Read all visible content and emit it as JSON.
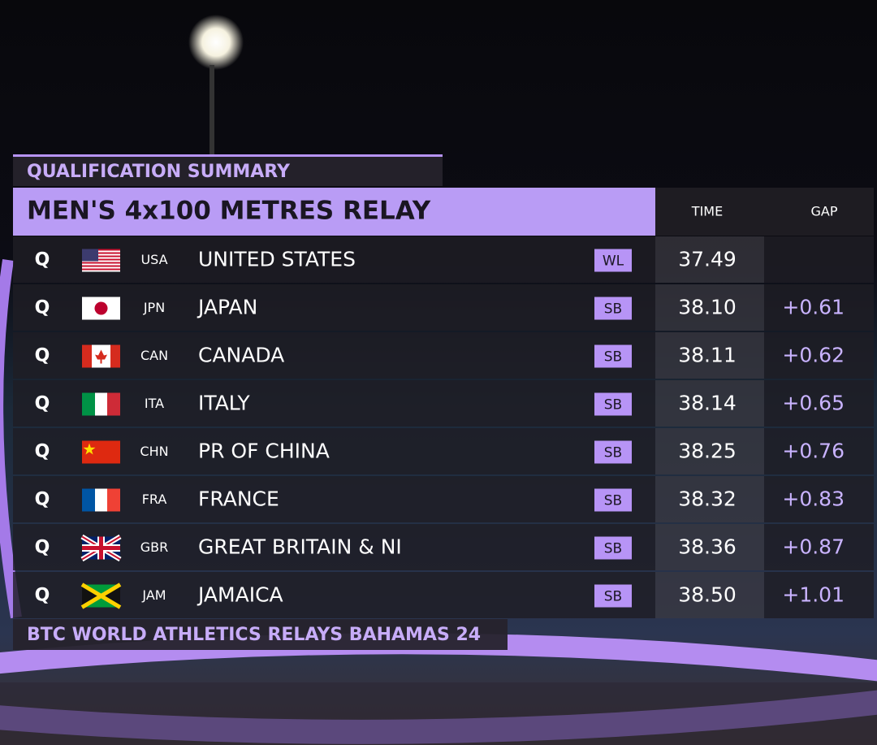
{
  "header": {
    "subtitle": "QUALIFICATION SUMMARY",
    "title": "MEN'S 4x100 METRES RELAY",
    "columns": [
      "TIME",
      "GAP"
    ]
  },
  "table": {
    "rows": [
      {
        "status": "Q",
        "code": "USA",
        "country": "UNITED STATES",
        "mark": "WL",
        "time": "37.49"
      },
      {
        "status": "Q",
        "code": "JPN",
        "country": "JAPAN",
        "mark": "SB",
        "time": "38.10",
        "gap": "+0.61"
      },
      {
        "status": "Q",
        "code": "CAN",
        "country": "CANADA",
        "mark": "SB",
        "time": "38.11",
        "gap": "+0.62"
      },
      {
        "status": "Q",
        "code": "ITA",
        "country": "ITALY",
        "mark": "SB",
        "time": "38.14",
        "gap": "+0.65"
      },
      {
        "status": "Q",
        "code": "CHN",
        "country": "PR OF CHINA",
        "mark": "SB",
        "time": "38.25",
        "gap": "+0.76"
      },
      {
        "status": "Q",
        "code": "FRA",
        "country": "FRANCE",
        "mark": "SB",
        "time": "38.32",
        "gap": "+0.83"
      },
      {
        "status": "Q",
        "code": "GBR",
        "country": "GREAT BRITAIN & NI",
        "mark": "SB",
        "time": "38.36",
        "gap": "+0.87"
      },
      {
        "status": "Q",
        "code": "JAM",
        "country": "JAMAICA",
        "mark": "SB",
        "time": "38.50",
        "gap": "+1.01"
      }
    ]
  },
  "footer": {
    "text": "BTC WORLD ATHLETICS RELAYS BAHAMAS 24"
  }
}
